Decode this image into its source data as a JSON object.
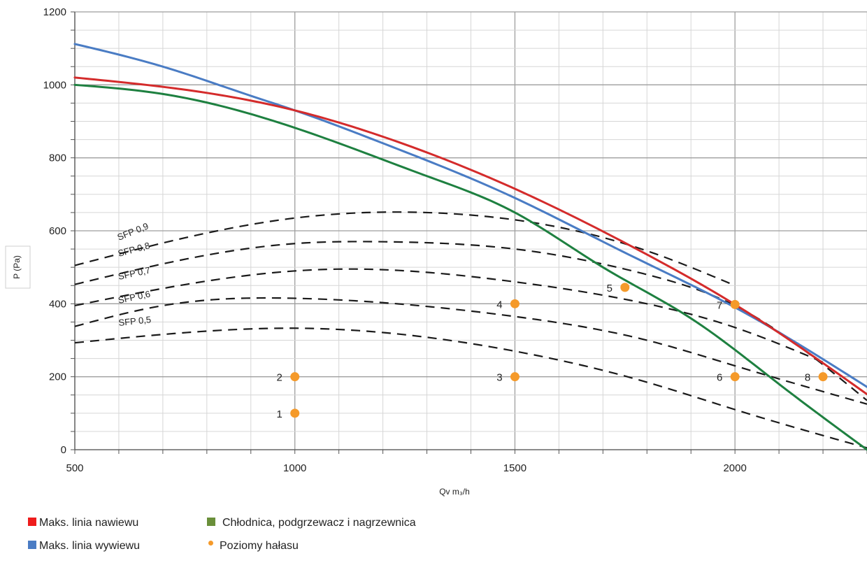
{
  "chart_data": {
    "type": "line",
    "xlabel": "Qv m₃/h",
    "ylabel": "P (Pa)",
    "xlim": [
      500,
      2300
    ],
    "ylim": [
      0,
      1200
    ],
    "x_ticks": [
      500,
      1000,
      1500,
      2000
    ],
    "y_ticks": [
      0,
      200,
      400,
      600,
      800,
      1000,
      1200
    ],
    "grid": true,
    "legend_position": "bottom",
    "series": [
      {
        "name": "Maks. linia nawiewu",
        "color": "#d42b2b",
        "x": [
          500,
          800,
          1000,
          1200,
          1500,
          1800,
          2000,
          2300
        ],
        "y": [
          1020,
          978,
          930,
          858,
          715,
          535,
          398,
          152
        ]
      },
      {
        "name": "Maks. linia wywiewu",
        "color": "#4a7cc4",
        "x": [
          500,
          700,
          900,
          1000,
          1200,
          1500,
          1750,
          2000,
          2300
        ],
        "y": [
          1112,
          1050,
          970,
          930,
          840,
          690,
          540,
          390,
          172
        ]
      },
      {
        "name": "Chłodnica, podgrzewacz i nagrzewnica",
        "color": "#1e8040",
        "x": [
          500,
          700,
          900,
          1100,
          1300,
          1500,
          1700,
          1900,
          2100,
          2300
        ],
        "y": [
          1000,
          975,
          920,
          840,
          750,
          650,
          500,
          360,
          180,
          0
        ]
      }
    ],
    "sfp_lines": [
      {
        "label": "SFP 0,9",
        "x": [
          500,
          1000,
          1300,
          1500,
          1800,
          2000
        ],
        "y": [
          505,
          635,
          650,
          630,
          545,
          450
        ]
      },
      {
        "label": "SFP 0,8",
        "x": [
          500,
          1000,
          1200,
          1500,
          1800,
          2000,
          2300
        ],
        "y": [
          453,
          565,
          570,
          550,
          480,
          395,
          135
        ]
      },
      {
        "label": "SFP 0,7",
        "x": [
          500,
          1000,
          1100,
          1500,
          1800,
          2000,
          2200
        ],
        "y": [
          395,
          490,
          495,
          460,
          400,
          335,
          240
        ]
      },
      {
        "label": "SFP 0,6",
        "x": [
          500,
          700,
          1000,
          1500,
          1800,
          2000,
          2300
        ],
        "y": [
          338,
          395,
          415,
          365,
          300,
          230,
          125
        ]
      },
      {
        "label": "SFP 0,5",
        "x": [
          500,
          800,
          1000,
          1500,
          1800,
          2000,
          2300
        ],
        "y": [
          293,
          325,
          333,
          270,
          185,
          110,
          5
        ]
      }
    ],
    "noise_points": {
      "name": "Poziomy hałasu",
      "color": "#f59a2a",
      "points": [
        {
          "label": "1",
          "x": 1000,
          "y": 100
        },
        {
          "label": "2",
          "x": 1000,
          "y": 200
        },
        {
          "label": "3",
          "x": 1500,
          "y": 200
        },
        {
          "label": "4",
          "x": 1500,
          "y": 400
        },
        {
          "label": "5",
          "x": 1750,
          "y": 445
        },
        {
          "label": "6",
          "x": 2000,
          "y": 200
        },
        {
          "label": "7",
          "x": 2000,
          "y": 398
        },
        {
          "label": "8",
          "x": 2200,
          "y": 200
        }
      ]
    }
  },
  "legend": {
    "items": [
      {
        "label": "Maks. linia nawiewu",
        "color": "#ee1c1c",
        "kind": "square"
      },
      {
        "label": "Chłodnica, podgrzewacz i nagrzewnica",
        "color": "#6a8f3a",
        "kind": "square"
      },
      {
        "label": "Maks. linia wywiewu",
        "color": "#4a7cc4",
        "kind": "square"
      },
      {
        "label": "Poziomy hałasu",
        "color": "#f59a2a",
        "kind": "dot"
      }
    ]
  }
}
